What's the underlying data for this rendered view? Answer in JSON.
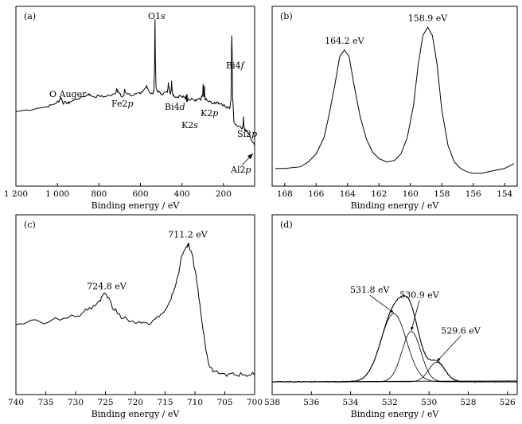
{
  "chart_data": [
    {
      "panel": "(a)",
      "type": "line",
      "xlabel": "Binding energy / eV",
      "xlim": [
        1200,
        50
      ],
      "ylim": [
        0,
        100
      ],
      "x_reversed": true,
      "xticks": [
        1200,
        1000,
        800,
        600,
        400,
        200
      ],
      "xtick_labels": [
        "1 200",
        "1 000",
        "800",
        "600",
        "400",
        "200"
      ],
      "series": [
        {
          "x": [
            1200,
            1150,
            1100,
            1050,
            1030,
            1010,
            1000,
            990,
            985,
            980,
            975,
            970,
            960,
            950,
            940,
            920,
            900,
            880,
            860,
            850,
            840,
            820,
            800,
            780,
            760,
            740,
            720,
            715,
            710,
            705,
            700,
            690,
            680,
            676,
            672,
            660,
            640,
            620,
            600,
            590,
            580,
            570,
            560,
            550,
            540,
            535,
            532,
            530,
            528,
            525,
            520,
            510,
            500,
            490,
            480,
            470,
            468,
            466,
            462,
            460,
            458,
            456,
            452,
            450,
            448,
            446,
            444,
            440,
            430,
            420,
            410,
            400,
            390,
            385,
            380,
            378,
            376,
            374,
            370,
            360,
            350,
            340,
            330,
            320,
            310,
            305,
            300,
            298,
            295,
            293,
            292,
            290,
            288,
            285,
            280,
            270,
            260,
            250,
            240,
            230,
            220,
            210,
            200,
            190,
            180,
            170,
            164,
            161,
            160,
            158,
            156,
            150,
            140,
            130,
            120,
            110,
            106,
            104,
            102,
            100,
            96,
            90,
            80,
            74,
            72,
            70,
            60,
            50
          ],
          "y": [
            41,
            42,
            43,
            44,
            45,
            46,
            47,
            48,
            50,
            49,
            47,
            46,
            47,
            46,
            47,
            48,
            49,
            50,
            51,
            52,
            51,
            50,
            51,
            50,
            51,
            51,
            52,
            55,
            54,
            53,
            52,
            50,
            51,
            55,
            53,
            52,
            51,
            52,
            52,
            53,
            55,
            57,
            54,
            52,
            52,
            54,
            70,
            98,
            72,
            56,
            54,
            53,
            52,
            52,
            53,
            53,
            55,
            59,
            56,
            54,
            53,
            52,
            54,
            60,
            55,
            53,
            52,
            51,
            50,
            50,
            51,
            50,
            50,
            49,
            51,
            47,
            52,
            48,
            49,
            48,
            49,
            48,
            48,
            49,
            48,
            50,
            51,
            58,
            50,
            53,
            57,
            50,
            48,
            49,
            48,
            47,
            47,
            46,
            46,
            47,
            46,
            46,
            45,
            44,
            44,
            43,
            48,
            80,
            88,
            74,
            50,
            35,
            33,
            32,
            32,
            31,
            32,
            38,
            33,
            31,
            30,
            29,
            28,
            27,
            26,
            25,
            22,
            20
          ]
        }
      ],
      "annotations": [
        "O Auger",
        "O1s",
        "Fe2p",
        "Bi4d",
        "K2s",
        "K2p",
        "Bi4f",
        "Si2p",
        "Al2p"
      ]
    },
    {
      "panel": "(b)",
      "type": "line",
      "xlabel": "Binding energy / eV",
      "xlim": [
        168.8,
        153.2
      ],
      "ylim": [
        0,
        100
      ],
      "x_reversed": true,
      "xticks": [
        168,
        166,
        164,
        162,
        160,
        158,
        156,
        154
      ],
      "series": [
        {
          "x": [
            168.6,
            168,
            167,
            166.5,
            166,
            165.5,
            165.2,
            164.8,
            164.5,
            164.2,
            163.9,
            163.6,
            163.2,
            162.8,
            162.4,
            162,
            161.5,
            161,
            160.6,
            160.2,
            159.8,
            159.5,
            159.2,
            158.9,
            158.6,
            158.3,
            158,
            157.6,
            157.2,
            156.8,
            156.4,
            156,
            155.5,
            155,
            154.5,
            154,
            153.6,
            153.4
          ],
          "y": [
            6,
            6,
            7,
            10,
            15,
            25,
            38,
            58,
            75,
            79,
            75,
            58,
            38,
            24,
            16,
            12,
            10,
            11,
            15,
            25,
            45,
            70,
            88,
            93,
            88,
            70,
            42,
            20,
            10,
            6,
            4,
            3,
            3,
            4,
            5,
            6,
            8,
            9
          ],
          "labels": [
            {
              "x": 164.2,
              "text": "164.2 eV"
            },
            {
              "x": 158.9,
              "text": "158.9 eV"
            }
          ]
        }
      ]
    },
    {
      "panel": "(c)",
      "type": "line",
      "xlabel": "Binding energy / eV",
      "xlim": [
        740,
        700
      ],
      "ylim": [
        0,
        100
      ],
      "x_reversed": true,
      "xticks": [
        740,
        735,
        730,
        725,
        720,
        715,
        710,
        705,
        700
      ],
      "series": [
        {
          "x": [
            740,
            738,
            736,
            734,
            732,
            730,
            729,
            728,
            727,
            726,
            725.5,
            725,
            724.5,
            724,
            723.5,
            723,
            722,
            721,
            720,
            719,
            718,
            717,
            716,
            715,
            714,
            713.5,
            713,
            712.5,
            712,
            711.5,
            711.2,
            711,
            710.5,
            710,
            709.5,
            709,
            708.5,
            708,
            707.5,
            707,
            706,
            705,
            704,
            703,
            702,
            701,
            700
          ],
          "y": [
            38,
            40,
            40,
            41,
            42,
            43,
            45,
            47,
            50,
            53,
            56,
            57,
            55,
            51,
            47,
            45,
            42,
            40,
            39,
            39,
            39,
            41,
            43,
            47,
            54,
            60,
            67,
            75,
            82,
            86,
            88,
            87,
            82,
            72,
            60,
            45,
            32,
            20,
            12,
            9,
            8,
            8,
            8,
            7,
            7,
            7,
            7
          ]
        }
      ],
      "labels": [
        {
          "x": 724.8,
          "text": "724.8 eV"
        },
        {
          "x": 711.2,
          "text": "711.2 eV"
        }
      ]
    },
    {
      "panel": "(d)",
      "type": "line",
      "xlabel": "Binding energy / eV",
      "xlim": [
        538,
        525.5
      ],
      "ylim": [
        0,
        100
      ],
      "x_reversed": true,
      "xticks": [
        538,
        536,
        534,
        532,
        530,
        528,
        526
      ],
      "series": [
        {
          "name": "",
          "peak": 531.8,
          "height": 42,
          "sigma": 0.65,
          "offset": 3
        },
        {
          "name": "",
          "peak": 530.9,
          "height": 31,
          "sigma": 0.48,
          "offset": 3
        },
        {
          "name": "",
          "peak": 529.6,
          "height": 12,
          "sigma": 0.42,
          "offset": 3
        }
      ],
      "envelope": true,
      "baseline": 3,
      "labels": [
        {
          "x": 531.8,
          "text": "531.8 eV"
        },
        {
          "x": 530.9,
          "text": "530.9 eV"
        },
        {
          "x": 529.6,
          "text": "529.6 eV"
        }
      ]
    }
  ]
}
